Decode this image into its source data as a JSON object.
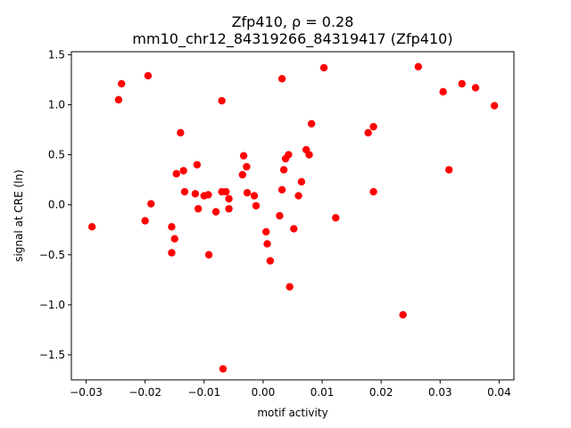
{
  "chart_data": {
    "type": "scatter",
    "title_line1": "Zfp410, ρ = 0.28",
    "title_line2": "mm10_chr12_84319266_84319417 (Zfp410)",
    "xlabel": "motif activity",
    "ylabel": "signal at CRE (ln)",
    "xlim": [
      -0.0325,
      0.0425
    ],
    "ylim": [
      -1.75,
      1.53
    ],
    "xticks": [
      -0.03,
      -0.02,
      -0.01,
      0.0,
      0.01,
      0.02,
      0.03,
      0.04
    ],
    "xtick_labels": [
      "−0.03",
      "−0.02",
      "−0.01",
      "0.00",
      "0.01",
      "0.02",
      "0.03",
      "0.04"
    ],
    "yticks": [
      -1.5,
      -1.0,
      -0.5,
      0.0,
      0.5,
      1.0,
      1.5
    ],
    "ytick_labels": [
      "−1.5",
      "−1.0",
      "−0.5",
      "0.0",
      "0.5",
      "1.0",
      "1.5"
    ],
    "grid": false,
    "marker_color": "#ff0000",
    "points": [
      {
        "x": -0.029,
        "y": -0.22
      },
      {
        "x": -0.0245,
        "y": 1.05
      },
      {
        "x": -0.024,
        "y": 1.21
      },
      {
        "x": -0.02,
        "y": -0.16
      },
      {
        "x": -0.0195,
        "y": 1.29
      },
      {
        "x": -0.019,
        "y": 0.01
      },
      {
        "x": -0.0155,
        "y": -0.22
      },
      {
        "x": -0.0155,
        "y": -0.48
      },
      {
        "x": -0.015,
        "y": -0.34
      },
      {
        "x": -0.0147,
        "y": 0.31
      },
      {
        "x": -0.014,
        "y": 0.72
      },
      {
        "x": -0.0135,
        "y": 0.34
      },
      {
        "x": -0.0133,
        "y": 0.13
      },
      {
        "x": -0.0115,
        "y": 0.11
      },
      {
        "x": -0.0112,
        "y": 0.4
      },
      {
        "x": -0.011,
        "y": -0.04
      },
      {
        "x": -0.01,
        "y": 0.09
      },
      {
        "x": -0.0093,
        "y": 0.1
      },
      {
        "x": -0.0092,
        "y": -0.5
      },
      {
        "x": -0.008,
        "y": -0.07
      },
      {
        "x": -0.007,
        "y": 1.04
      },
      {
        "x": -0.007,
        "y": 0.13
      },
      {
        "x": -0.0068,
        "y": -1.64
      },
      {
        "x": -0.0063,
        "y": 0.13
      },
      {
        "x": -0.0058,
        "y": 0.06
      },
      {
        "x": -0.0058,
        "y": -0.04
      },
      {
        "x": -0.0035,
        "y": 0.3
      },
      {
        "x": -0.0033,
        "y": 0.49
      },
      {
        "x": -0.0028,
        "y": 0.38
      },
      {
        "x": -0.0027,
        "y": 0.12
      },
      {
        "x": -0.0015,
        "y": 0.09
      },
      {
        "x": -0.0012,
        "y": -0.01
      },
      {
        "x": 0.0005,
        "y": -0.27
      },
      {
        "x": 0.0007,
        "y": -0.39
      },
      {
        "x": 0.0012,
        "y": -0.56
      },
      {
        "x": 0.0028,
        "y": -0.11
      },
      {
        "x": 0.0032,
        "y": 1.26
      },
      {
        "x": 0.0032,
        "y": 0.15
      },
      {
        "x": 0.0035,
        "y": 0.35
      },
      {
        "x": 0.0038,
        "y": 0.46
      },
      {
        "x": 0.0043,
        "y": 0.5
      },
      {
        "x": 0.0045,
        "y": -0.82
      },
      {
        "x": 0.0052,
        "y": -0.24
      },
      {
        "x": 0.006,
        "y": 0.09
      },
      {
        "x": 0.0065,
        "y": 0.23
      },
      {
        "x": 0.0073,
        "y": 0.55
      },
      {
        "x": 0.0078,
        "y": 0.5
      },
      {
        "x": 0.0082,
        "y": 0.81
      },
      {
        "x": 0.0103,
        "y": 1.37
      },
      {
        "x": 0.0123,
        "y": -0.13
      },
      {
        "x": 0.0178,
        "y": 0.72
      },
      {
        "x": 0.0187,
        "y": 0.78
      },
      {
        "x": 0.0187,
        "y": 0.13
      },
      {
        "x": 0.0237,
        "y": -1.1
      },
      {
        "x": 0.0263,
        "y": 1.38
      },
      {
        "x": 0.0305,
        "y": 1.13
      },
      {
        "x": 0.0315,
        "y": 0.35
      },
      {
        "x": 0.0337,
        "y": 1.21
      },
      {
        "x": 0.036,
        "y": 1.17
      },
      {
        "x": 0.0392,
        "y": 0.99
      }
    ]
  }
}
